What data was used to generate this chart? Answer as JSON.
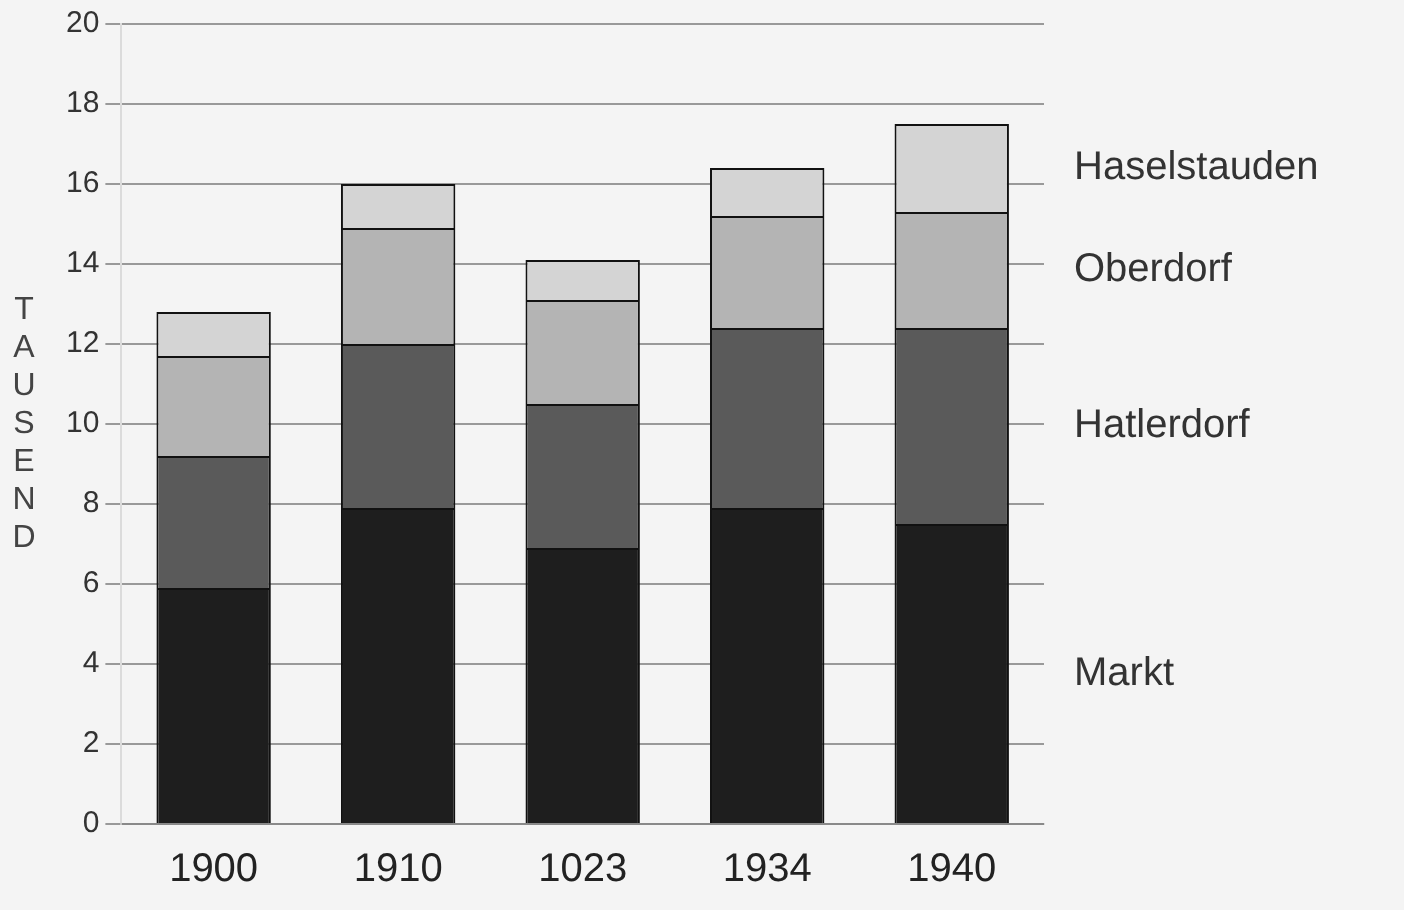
{
  "chart_data": {
    "type": "bar",
    "stacked": true,
    "ylabel": "TAUSEND",
    "categories": [
      "1900",
      "1910",
      "1023",
      "1934",
      "1940"
    ],
    "series": [
      {
        "name": "Markt",
        "color": "#1e1e1e",
        "values": [
          5.9,
          7.9,
          6.9,
          7.9,
          7.5
        ]
      },
      {
        "name": "Hatlerdorf",
        "color": "#5a5a5a",
        "values": [
          3.3,
          4.1,
          3.6,
          4.5,
          4.9
        ]
      },
      {
        "name": "Oberdorf",
        "color": "#b4b4b4",
        "values": [
          2.5,
          2.9,
          2.6,
          2.8,
          2.9
        ]
      },
      {
        "name": "Haselstauden",
        "color": "#d4d4d4",
        "values": [
          1.1,
          1.1,
          1.0,
          1.2,
          2.2
        ]
      }
    ],
    "ylim": [
      0,
      20
    ],
    "yticks": [
      0,
      2,
      4,
      6,
      8,
      10,
      12,
      14,
      16,
      18,
      20
    ],
    "grid": "y",
    "legend": "right"
  }
}
